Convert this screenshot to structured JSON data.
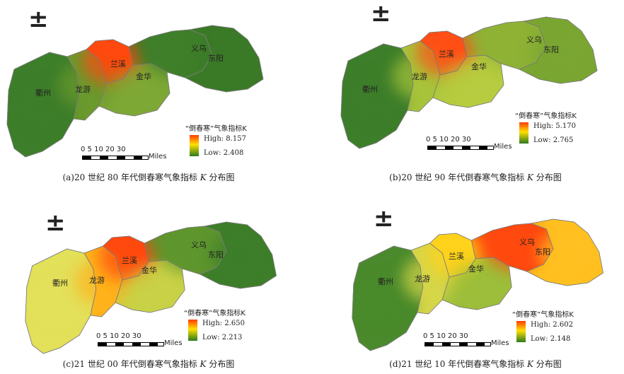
{
  "north_symbol": "±",
  "scale": {
    "ticks": "0 5 10  20  30",
    "unit": "Miles"
  },
  "legend_title": "“倒春寒”气象指标K",
  "cities": [
    "衢州",
    "龙游",
    "兰溪",
    "金华",
    "义乌",
    "东阳"
  ],
  "legend_colors": {
    "high": "#ff3b00",
    "mid": "#ffe000",
    "low": "#2d7a1e"
  },
  "panels": [
    {
      "id": "a",
      "high_label": "High: 8.157",
      "low_label": "Low: 2.408",
      "caption_pre": "(a)20 世纪 80 年代倒春寒气象指标 ",
      "caption_k": "K",
      "caption_post": " 分布图",
      "colors": {
        "quzhou": "#3d7e2a",
        "longyou": "#6b9a2e",
        "lanxi": "#ff4a10",
        "jinhua": "#7ea836",
        "yiwu": "#3f7f2b",
        "dongyang": "#3b7a28",
        "hot": "#ffdc00"
      }
    },
    {
      "id": "b",
      "high_label": "High: 5.170",
      "low_label": "Low: 2.765",
      "caption_pre": "(b)20 世纪 90 年代倒春寒气象指标 ",
      "caption_k": "K",
      "caption_post": " 分布图",
      "colors": {
        "quzhou": "#3d7e2a",
        "longyou": "#a7c43a",
        "lanxi": "#ff5016",
        "jinhua": "#b7cc40",
        "yiwu": "#8fb236",
        "dongyang": "#7aa632",
        "hot": "#ffd800"
      }
    },
    {
      "id": "c",
      "high_label": "High: 2.650",
      "low_label": "Low: 2.213",
      "caption_pre": "(c)21 世纪 00 年代倒春寒气象指标 ",
      "caption_k": "K",
      "caption_post": " 分布图",
      "colors": {
        "quzhou": "#e3e05a",
        "longyou": "#ffb21a",
        "lanxi": "#ff4a10",
        "jinhua": "#c9d246",
        "yiwu": "#5f962e",
        "dongyang": "#3e7e2a",
        "hot": "#ffd000"
      }
    },
    {
      "id": "d",
      "high_label": "High: 2.602",
      "low_label": "Low: 2.148",
      "caption_pre": "(d)21 世纪 10 年代倒春寒气象指标 ",
      "caption_k": "K",
      "caption_post": " 分布图",
      "colors": {
        "quzhou": "#4a8a2c",
        "longyou": "#d6d64a",
        "lanxi": "#ffd21a",
        "jinhua": "#9dbe3a",
        "yiwu": "#ff4a10",
        "dongyang": "#ffc020",
        "hot": "#ffe000"
      }
    }
  ]
}
